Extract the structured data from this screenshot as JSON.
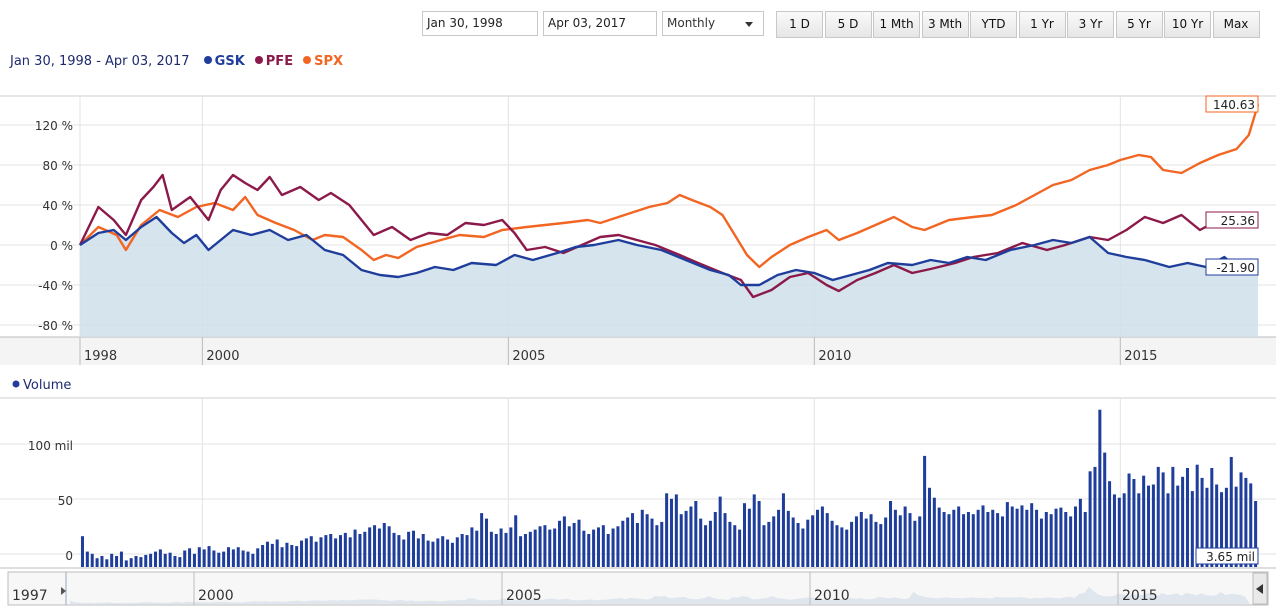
{
  "controls": {
    "from_date": "Jan 30, 1998",
    "to_date": "Apr 03, 2017",
    "interval": "Monthly",
    "ranges": [
      "1 D",
      "5 D",
      "1 Mth",
      "3 Mth",
      "YTD",
      "1 Yr",
      "3 Yr",
      "5 Yr",
      "10 Yr",
      "Max"
    ]
  },
  "legend": {
    "date_range": "Jan 30, 1998 - Apr 03, 2017",
    "volume_label": "Volume"
  },
  "navigator": {
    "labels": [
      "1997",
      "2000",
      "2005",
      "2010",
      "2015"
    ]
  },
  "chart_data": [
    {
      "type": "line",
      "x_range": [
        1998.0,
        2017.25
      ],
      "ylim": [
        -90,
        150
      ],
      "y_unit": "%",
      "y_ticks": [
        120,
        80,
        40,
        0,
        -40,
        -80
      ],
      "y_tick_labels": [
        "120 %",
        "80 %",
        "40 %",
        "0 %",
        "-40 %",
        "-80 %"
      ],
      "x_ticks": [
        1998,
        2000,
        2005,
        2010,
        2015
      ],
      "x_tick_labels": [
        "1998",
        "2000",
        "2005",
        "2010",
        "2015"
      ],
      "grid": true,
      "legend_position": "top-left",
      "series": [
        {
          "name": "SPX",
          "color": "#f26522",
          "last_label": "140.63",
          "points": [
            [
              1998.0,
              0
            ],
            [
              1998.3,
              18
            ],
            [
              1998.6,
              10
            ],
            [
              1998.75,
              -5
            ],
            [
              1999.0,
              20
            ],
            [
              1999.3,
              35
            ],
            [
              1999.6,
              28
            ],
            [
              1999.9,
              38
            ],
            [
              2000.2,
              42
            ],
            [
              2000.5,
              35
            ],
            [
              2000.7,
              48
            ],
            [
              2000.9,
              30
            ],
            [
              2001.2,
              22
            ],
            [
              2001.5,
              15
            ],
            [
              2001.8,
              5
            ],
            [
              2002.0,
              10
            ],
            [
              2002.3,
              8
            ],
            [
              2002.6,
              -5
            ],
            [
              2002.8,
              -15
            ],
            [
              2003.0,
              -10
            ],
            [
              2003.2,
              -13
            ],
            [
              2003.5,
              -2
            ],
            [
              2003.9,
              5
            ],
            [
              2004.2,
              10
            ],
            [
              2004.6,
              8
            ],
            [
              2004.9,
              15
            ],
            [
              2005.3,
              18
            ],
            [
              2005.6,
              20
            ],
            [
              2005.9,
              22
            ],
            [
              2006.3,
              25
            ],
            [
              2006.5,
              22
            ],
            [
              2006.9,
              30
            ],
            [
              2007.3,
              38
            ],
            [
              2007.6,
              42
            ],
            [
              2007.8,
              50
            ],
            [
              2008.0,
              45
            ],
            [
              2008.3,
              38
            ],
            [
              2008.5,
              30
            ],
            [
              2008.7,
              10
            ],
            [
              2008.9,
              -10
            ],
            [
              2009.1,
              -22
            ],
            [
              2009.3,
              -12
            ],
            [
              2009.6,
              0
            ],
            [
              2009.9,
              8
            ],
            [
              2010.2,
              15
            ],
            [
              2010.4,
              5
            ],
            [
              2010.7,
              12
            ],
            [
              2011.0,
              20
            ],
            [
              2011.3,
              28
            ],
            [
              2011.6,
              18
            ],
            [
              2011.8,
              15
            ],
            [
              2012.2,
              25
            ],
            [
              2012.6,
              28
            ],
            [
              2012.9,
              30
            ],
            [
              2013.3,
              40
            ],
            [
              2013.6,
              50
            ],
            [
              2013.9,
              60
            ],
            [
              2014.2,
              65
            ],
            [
              2014.5,
              75
            ],
            [
              2014.8,
              80
            ],
            [
              2015.0,
              85
            ],
            [
              2015.3,
              90
            ],
            [
              2015.5,
              88
            ],
            [
              2015.7,
              75
            ],
            [
              2016.0,
              72
            ],
            [
              2016.3,
              82
            ],
            [
              2016.6,
              90
            ],
            [
              2016.9,
              96
            ],
            [
              2017.1,
              110
            ],
            [
              2017.25,
              140.63
            ]
          ]
        },
        {
          "name": "PFE",
          "color": "#8b1a4a",
          "last_label": "25.36",
          "points": [
            [
              1998.0,
              0
            ],
            [
              1998.3,
              38
            ],
            [
              1998.55,
              25
            ],
            [
              1998.75,
              10
            ],
            [
              1999.0,
              45
            ],
            [
              1999.2,
              58
            ],
            [
              1999.35,
              70
            ],
            [
              1999.5,
              35
            ],
            [
              1999.8,
              48
            ],
            [
              2000.1,
              25
            ],
            [
              2000.3,
              55
            ],
            [
              2000.5,
              70
            ],
            [
              2000.7,
              62
            ],
            [
              2000.9,
              55
            ],
            [
              2001.1,
              68
            ],
            [
              2001.3,
              50
            ],
            [
              2001.6,
              58
            ],
            [
              2001.9,
              45
            ],
            [
              2002.1,
              52
            ],
            [
              2002.4,
              40
            ],
            [
              2002.6,
              25
            ],
            [
              2002.8,
              10
            ],
            [
              2003.1,
              18
            ],
            [
              2003.4,
              5
            ],
            [
              2003.7,
              12
            ],
            [
              2004.0,
              10
            ],
            [
              2004.3,
              22
            ],
            [
              2004.6,
              20
            ],
            [
              2004.9,
              25
            ],
            [
              2005.1,
              12
            ],
            [
              2005.3,
              -5
            ],
            [
              2005.6,
              -2
            ],
            [
              2005.9,
              -8
            ],
            [
              2006.2,
              0
            ],
            [
              2006.5,
              8
            ],
            [
              2006.8,
              10
            ],
            [
              2007.1,
              5
            ],
            [
              2007.4,
              0
            ],
            [
              2007.8,
              -10
            ],
            [
              2008.1,
              -18
            ],
            [
              2008.5,
              -28
            ],
            [
              2008.8,
              -35
            ],
            [
              2009.0,
              -52
            ],
            [
              2009.3,
              -45
            ],
            [
              2009.6,
              -32
            ],
            [
              2009.9,
              -28
            ],
            [
              2010.2,
              -40
            ],
            [
              2010.4,
              -46
            ],
            [
              2010.7,
              -35
            ],
            [
              2011.0,
              -28
            ],
            [
              2011.3,
              -20
            ],
            [
              2011.6,
              -28
            ],
            [
              2011.9,
              -24
            ],
            [
              2012.3,
              -18
            ],
            [
              2012.6,
              -12
            ],
            [
              2013.0,
              -8
            ],
            [
              2013.4,
              2
            ],
            [
              2013.8,
              -5
            ],
            [
              2014.1,
              0
            ],
            [
              2014.5,
              8
            ],
            [
              2014.8,
              5
            ],
            [
              2015.1,
              15
            ],
            [
              2015.4,
              28
            ],
            [
              2015.7,
              22
            ],
            [
              2016.0,
              30
            ],
            [
              2016.3,
              15
            ],
            [
              2016.7,
              28
            ],
            [
              2017.0,
              20
            ],
            [
              2017.25,
              25.36
            ]
          ]
        },
        {
          "name": "GSK",
          "color": "#1f3e9c",
          "last_label": "-21.90",
          "points": [
            [
              1998.0,
              0
            ],
            [
              1998.3,
              12
            ],
            [
              1998.55,
              15
            ],
            [
              1998.75,
              5
            ],
            [
              1999.0,
              18
            ],
            [
              1999.25,
              28
            ],
            [
              1999.5,
              12
            ],
            [
              1999.7,
              2
            ],
            [
              1999.9,
              10
            ],
            [
              2000.1,
              -5
            ],
            [
              2000.3,
              5
            ],
            [
              2000.5,
              15
            ],
            [
              2000.8,
              10
            ],
            [
              2001.1,
              15
            ],
            [
              2001.4,
              5
            ],
            [
              2001.7,
              10
            ],
            [
              2002.0,
              -5
            ],
            [
              2002.3,
              -10
            ],
            [
              2002.6,
              -25
            ],
            [
              2002.9,
              -30
            ],
            [
              2003.2,
              -32
            ],
            [
              2003.5,
              -28
            ],
            [
              2003.8,
              -22
            ],
            [
              2004.1,
              -25
            ],
            [
              2004.4,
              -18
            ],
            [
              2004.8,
              -20
            ],
            [
              2005.1,
              -10
            ],
            [
              2005.4,
              -15
            ],
            [
              2005.8,
              -8
            ],
            [
              2006.1,
              -2
            ],
            [
              2006.4,
              0
            ],
            [
              2006.8,
              5
            ],
            [
              2007.1,
              0
            ],
            [
              2007.5,
              -5
            ],
            [
              2007.9,
              -15
            ],
            [
              2008.3,
              -25
            ],
            [
              2008.6,
              -30
            ],
            [
              2008.8,
              -40
            ],
            [
              2009.1,
              -40
            ],
            [
              2009.4,
              -30
            ],
            [
              2009.7,
              -25
            ],
            [
              2010.0,
              -28
            ],
            [
              2010.3,
              -35
            ],
            [
              2010.6,
              -30
            ],
            [
              2010.9,
              -25
            ],
            [
              2011.2,
              -18
            ],
            [
              2011.6,
              -20
            ],
            [
              2011.9,
              -15
            ],
            [
              2012.2,
              -18
            ],
            [
              2012.5,
              -12
            ],
            [
              2012.8,
              -15
            ],
            [
              2013.2,
              -5
            ],
            [
              2013.6,
              0
            ],
            [
              2013.9,
              5
            ],
            [
              2014.2,
              2
            ],
            [
              2014.5,
              8
            ],
            [
              2014.8,
              -8
            ],
            [
              2015.1,
              -12
            ],
            [
              2015.4,
              -15
            ],
            [
              2015.8,
              -22
            ],
            [
              2016.1,
              -18
            ],
            [
              2016.4,
              -22
            ],
            [
              2016.7,
              -12
            ],
            [
              2017.0,
              -28
            ],
            [
              2017.25,
              -21.9
            ]
          ]
        }
      ]
    },
    {
      "type": "bar",
      "title": "Volume",
      "ylim": [
        0,
        150
      ],
      "y_unit": "mil",
      "y_ticks": [
        0,
        50,
        100
      ],
      "y_tick_labels": [
        "0",
        "50",
        "100 mil"
      ],
      "last_label": "3.65 mil",
      "color": "#1f3e9c",
      "grid": true,
      "values": [
        28,
        14,
        12,
        8,
        10,
        7,
        12,
        10,
        14,
        6,
        8,
        10,
        9,
        11,
        12,
        14,
        16,
        12,
        13,
        10,
        9,
        15,
        17,
        12,
        18,
        16,
        19,
        15,
        13,
        14,
        18,
        16,
        18,
        15,
        14,
        12,
        17,
        20,
        23,
        21,
        25,
        18,
        22,
        20,
        19,
        24,
        26,
        28,
        23,
        27,
        29,
        30,
        26,
        29,
        31,
        27,
        34,
        30,
        32,
        36,
        38,
        35,
        40,
        37,
        31,
        29,
        25,
        32,
        33,
        26,
        30,
        24,
        23,
        26,
        28,
        25,
        22,
        27,
        30,
        29,
        36,
        33,
        49,
        44,
        32,
        30,
        35,
        31,
        36,
        47,
        28,
        30,
        32,
        34,
        37,
        38,
        34,
        35,
        42,
        46,
        37,
        40,
        43,
        33,
        30,
        34,
        36,
        38,
        30,
        35,
        37,
        42,
        45,
        49,
        40,
        52,
        48,
        44,
        38,
        41,
        67,
        62,
        66,
        48,
        51,
        55,
        60,
        44,
        38,
        42,
        50,
        64,
        49,
        41,
        38,
        34,
        58,
        53,
        66,
        60,
        38,
        41,
        46,
        52,
        67,
        51,
        45,
        40,
        35,
        43,
        47,
        52,
        55,
        49,
        42,
        38,
        36,
        34,
        41,
        46,
        50,
        44,
        48,
        41,
        39,
        45,
        60,
        52,
        47,
        55,
        49,
        42,
        46,
        101,
        72,
        63,
        54,
        50,
        48,
        52,
        55,
        48,
        50,
        48,
        52,
        56,
        50,
        52,
        49,
        46,
        59,
        55,
        53,
        56,
        52,
        58,
        52,
        44,
        50,
        48,
        53,
        54,
        50,
        46,
        55,
        62,
        50,
        87,
        91,
        143,
        104,
        78,
        66,
        63,
        67,
        85,
        80,
        67,
        83,
        74,
        75,
        91,
        86,
        67,
        91,
        74,
        82,
        90,
        69,
        93,
        81,
        72,
        90,
        75,
        68,
        72,
        100,
        73,
        86,
        81,
        76,
        60
      ],
      "x_ticks": [
        2000,
        2005,
        2010,
        2015
      ]
    }
  ]
}
